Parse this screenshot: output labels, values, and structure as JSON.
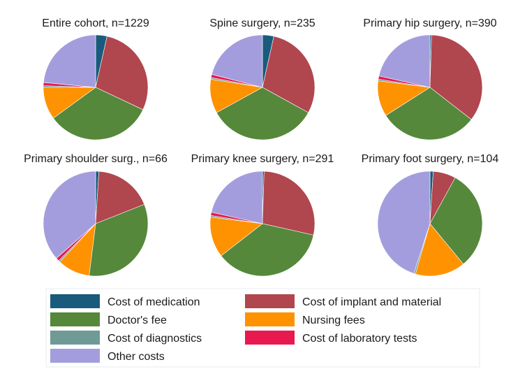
{
  "chart_data": {
    "type": "pie",
    "legend": {
      "position": "bottom",
      "entries": [
        {
          "key": "medication",
          "label": "Cost of medication",
          "color": "#1a5a7d"
        },
        {
          "key": "implant",
          "label": "Cost of implant and material",
          "color": "#b0464e"
        },
        {
          "key": "doctor",
          "label": "Doctor's fee",
          "color": "#55883b"
        },
        {
          "key": "nursing",
          "label": "Nursing fees",
          "color": "#ff9200"
        },
        {
          "key": "diagnostics",
          "label": "Cost of diagnostics",
          "color": "#6f9a96"
        },
        {
          "key": "laboratory",
          "label": "Cost of laboratory tests",
          "color": "#e8194f"
        },
        {
          "key": "other",
          "label": "Other costs",
          "color": "#a49ddd"
        }
      ]
    },
    "slice_order": [
      "medication",
      "implant",
      "doctor",
      "nursing",
      "diagnostics",
      "laboratory",
      "other"
    ],
    "pies": [
      {
        "title": "Entire cohort, n=1229",
        "values": {
          "medication": 3.5,
          "implant": 28.5,
          "doctor": 33.0,
          "nursing": 10.0,
          "diagnostics": 0.5,
          "laboratory": 1.0,
          "other": 23.5
        }
      },
      {
        "title": "Spine surgery, n=235",
        "values": {
          "medication": 3.5,
          "implant": 29.5,
          "doctor": 34.0,
          "nursing": 10.5,
          "diagnostics": 0.5,
          "laboratory": 1.0,
          "other": 21.0
        }
      },
      {
        "title": "Primary hip surgery, n=390",
        "values": {
          "medication": 0.5,
          "implant": 35.0,
          "doctor": 30.5,
          "nursing": 11.0,
          "diagnostics": 0.5,
          "laboratory": 1.0,
          "other": 21.5
        }
      },
      {
        "title": "Primary shoulder surg., n=66",
        "values": {
          "medication": 1.0,
          "implant": 18.0,
          "doctor": 33.0,
          "nursing": 10.0,
          "diagnostics": 0.5,
          "laboratory": 1.0,
          "other": 36.5
        }
      },
      {
        "title": "Primary knee surgery, n=291",
        "values": {
          "medication": 0.5,
          "implant": 28.0,
          "doctor": 36.0,
          "nursing": 12.5,
          "diagnostics": 0.5,
          "laboratory": 1.0,
          "other": 21.5
        }
      },
      {
        "title": "Primary foot surgery, n=104",
        "values": {
          "medication": 1.0,
          "implant": 7.0,
          "doctor": 31.0,
          "nursing": 15.5,
          "diagnostics": 0.5,
          "laboratory": 0.0,
          "other": 45.0
        }
      }
    ]
  }
}
